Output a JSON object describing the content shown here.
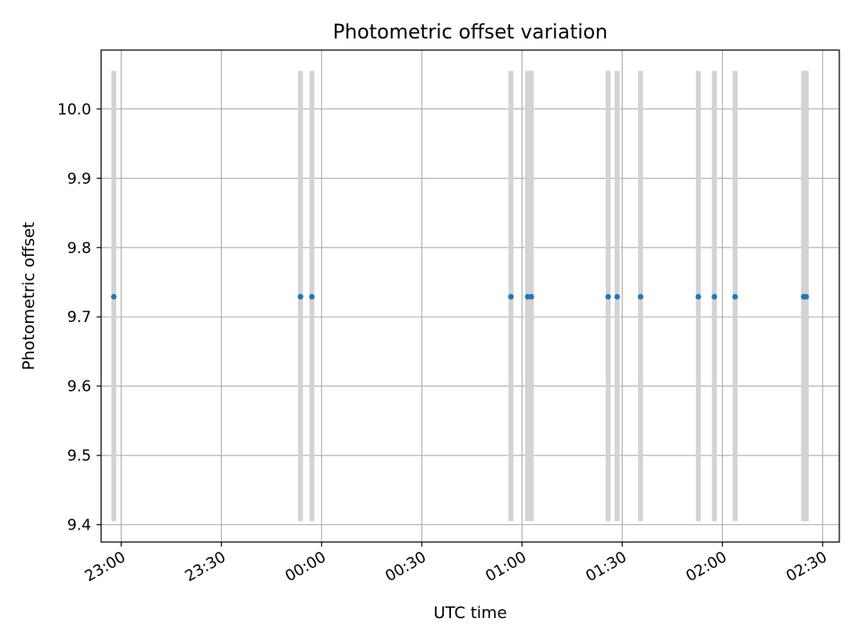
{
  "chart_data": {
    "type": "scatter",
    "title": "Photometric offset variation",
    "xlabel": "UTC time",
    "ylabel": "Photometric offset",
    "x_axis": "time",
    "xlim": [
      "22:54",
      "02:35"
    ],
    "ylim": [
      9.375,
      10.085
    ],
    "x_ticks": [
      "23:00",
      "23:30",
      "00:00",
      "00:30",
      "01:00",
      "01:30",
      "02:00",
      "02:30"
    ],
    "y_ticks": [
      "9.4",
      "9.5",
      "9.6",
      "9.7",
      "9.8",
      "9.9",
      "10.0"
    ],
    "grid": true,
    "legend": "none",
    "colors": {
      "points": "#1f77b4",
      "vertical_bands": "#d3d3d3",
      "grid": "#b0b0b0",
      "axes": "#000000"
    },
    "vertical_bands": {
      "y_range": [
        9.405,
        10.055
      ],
      "times": [
        "22:57.8",
        "23:53.7",
        "23:57.1",
        "00:56.7",
        "01:01.7",
        "01:02.8",
        "01:25.8",
        "01:28.5",
        "01:35.5",
        "01:52.8",
        "01:57.6",
        "02:03.8",
        "02:24.3",
        "02:25.1"
      ]
    },
    "series": [
      {
        "x": [
          "22:57.8",
          "23:53.7",
          "23:57.1",
          "00:56.7",
          "01:01.7",
          "01:02.8",
          "01:25.8",
          "01:28.5",
          "01:35.5",
          "01:52.8",
          "01:57.6",
          "02:03.8",
          "02:24.3",
          "02:25.1"
        ],
        "y": [
          9.729,
          9.729,
          9.729,
          9.729,
          9.729,
          9.729,
          9.729,
          9.729,
          9.729,
          9.729,
          9.729,
          9.729,
          9.729,
          9.729
        ]
      }
    ]
  }
}
